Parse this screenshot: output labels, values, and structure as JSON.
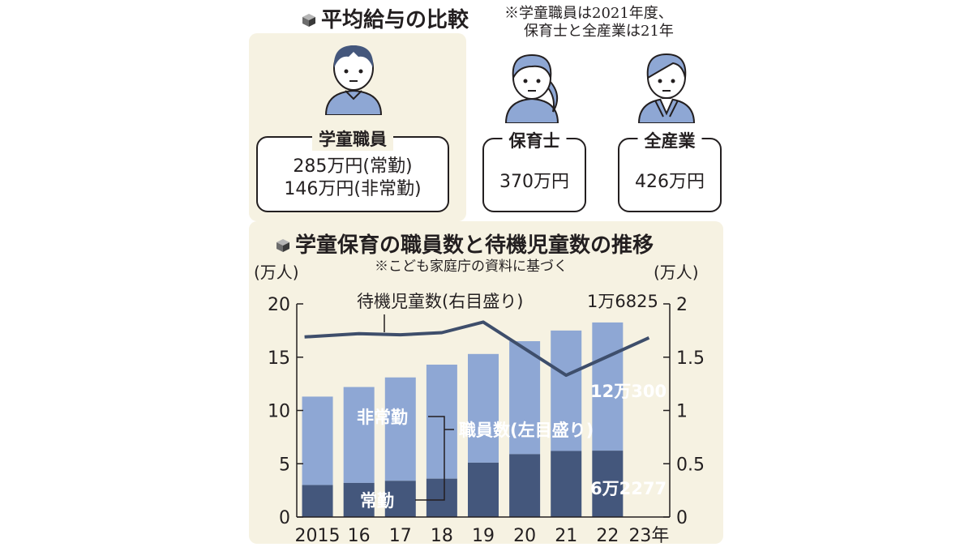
{
  "header": {
    "title": "平均給与の比較",
    "note_line1": "※学童職員は2021年度、",
    "note_line2": "保育士と全産業は21年"
  },
  "salary": {
    "gakudo": {
      "label": "学童職員",
      "value_fulltime": "285万円(常勤)",
      "value_parttime": "146万円(非常勤)"
    },
    "hoiku": {
      "label": "保育士",
      "value": "370万円"
    },
    "all": {
      "label": "全産業",
      "value": "426万円"
    }
  },
  "colors": {
    "panel": "#f6f2e2",
    "bar_light": "#8ea7d4",
    "bar_dark": "#44577c",
    "line": "#3e4e6b"
  },
  "chart_data": {
    "type": "bar",
    "title": "学童保育の職員数と待機児童数の推移",
    "source_note": "※こども家庭庁の資料に基づく",
    "left_unit": "(万人)",
    "right_unit": "(万人)",
    "categories": [
      "2015",
      "16",
      "17",
      "18",
      "19",
      "20",
      "21",
      "22",
      "23年"
    ],
    "ylim_left": [
      0,
      20
    ],
    "ylim_right": [
      0,
      2
    ],
    "y_ticks_left": [
      "0",
      "5",
      "10",
      "15",
      "20"
    ],
    "y_ticks_right": [
      "0",
      "0.5",
      "1",
      "1.5",
      "2"
    ],
    "series": [
      {
        "name": "常勤",
        "axis": "left",
        "values": [
          3.0,
          3.2,
          3.4,
          3.6,
          5.1,
          5.9,
          6.2,
          6.2277,
          null
        ]
      },
      {
        "name": "非常勤",
        "axis": "left",
        "values": [
          8.3,
          9.0,
          9.7,
          10.7,
          10.2,
          10.6,
          11.3,
          12.03,
          null
        ]
      },
      {
        "name": "待機児童数(右目盛り)",
        "axis": "right",
        "type": "line",
        "values": [
          1.69,
          1.72,
          1.71,
          1.73,
          1.83,
          null,
          1.33,
          null,
          1.6825
        ]
      }
    ],
    "annotations": {
      "waiting_label": "待機児童数(右目盛り)",
      "waiting_value": "1万6825",
      "staff_label": "職員数(左目盛り)",
      "parttime_label": "非常勤",
      "fulltime_label": "常勤",
      "total_value": "12万300",
      "fulltime_value": "6万2277"
    }
  }
}
